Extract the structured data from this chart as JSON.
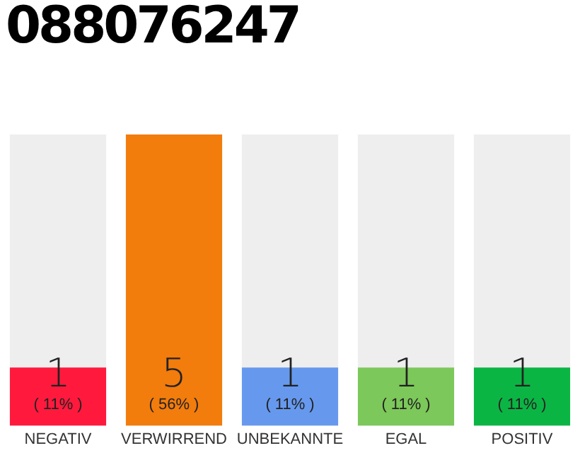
{
  "chart_data": {
    "type": "bar",
    "title": "088076247",
    "categories": [
      "NEGATIV",
      "VERWIRREND",
      "UNBEKANNTE",
      "EGAL",
      "POSITIV"
    ],
    "values": [
      1,
      5,
      1,
      1,
      1
    ],
    "colors": [
      "#ff1a3d",
      "#f27c0c",
      "#6699ee",
      "#7cc85a",
      "#0bb544"
    ],
    "value_labels": [
      "1\n( 11% )",
      "5\n( 56% )",
      "1\n( 11% )",
      "1\n( 11% )",
      "1\n( 11% )"
    ],
    "grid": false,
    "legend": false
  }
}
